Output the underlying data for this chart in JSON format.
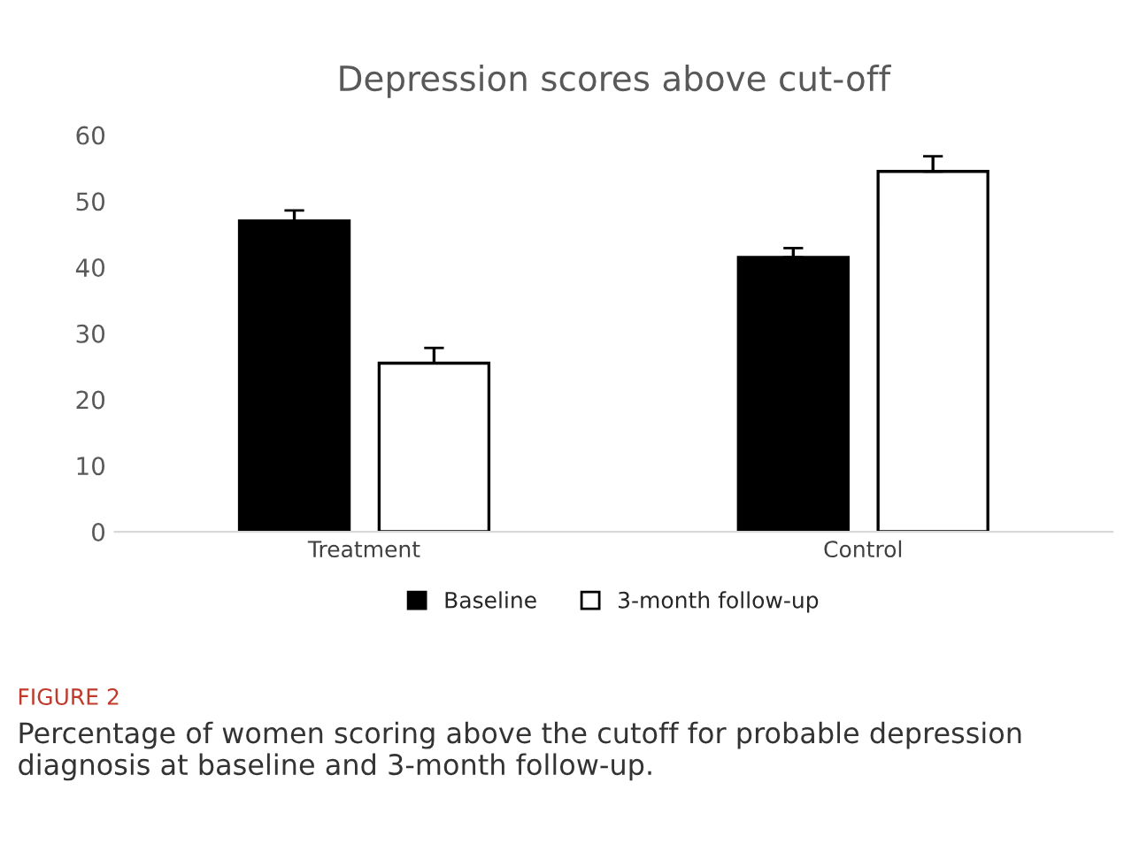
{
  "chart_data": {
    "type": "bar",
    "title": "Depression scores above cut-off",
    "categories": [
      "Treatment",
      "Control"
    ],
    "series": [
      {
        "name": "Baseline",
        "color": "#000000",
        "values": [
          47.0,
          41.5
        ],
        "errors": [
          [
            47.0,
            48.6
          ],
          [
            41.5,
            42.9
          ]
        ]
      },
      {
        "name": "3-month follow-up",
        "color": "#ffffff",
        "values": [
          25.5,
          54.5
        ],
        "errors": [
          [
            25.5,
            27.8
          ],
          [
            54.5,
            56.8
          ]
        ]
      }
    ],
    "ylim": [
      0,
      60
    ],
    "yticks": [
      0,
      10,
      20,
      30,
      40,
      50,
      60
    ],
    "grid": false,
    "legend": "bottom",
    "annotations": [
      "FIGURE 2",
      "Percentage of women scoring above the cutoff for probable depression diagnosis at baseline and 3-month follow-up."
    ]
  }
}
